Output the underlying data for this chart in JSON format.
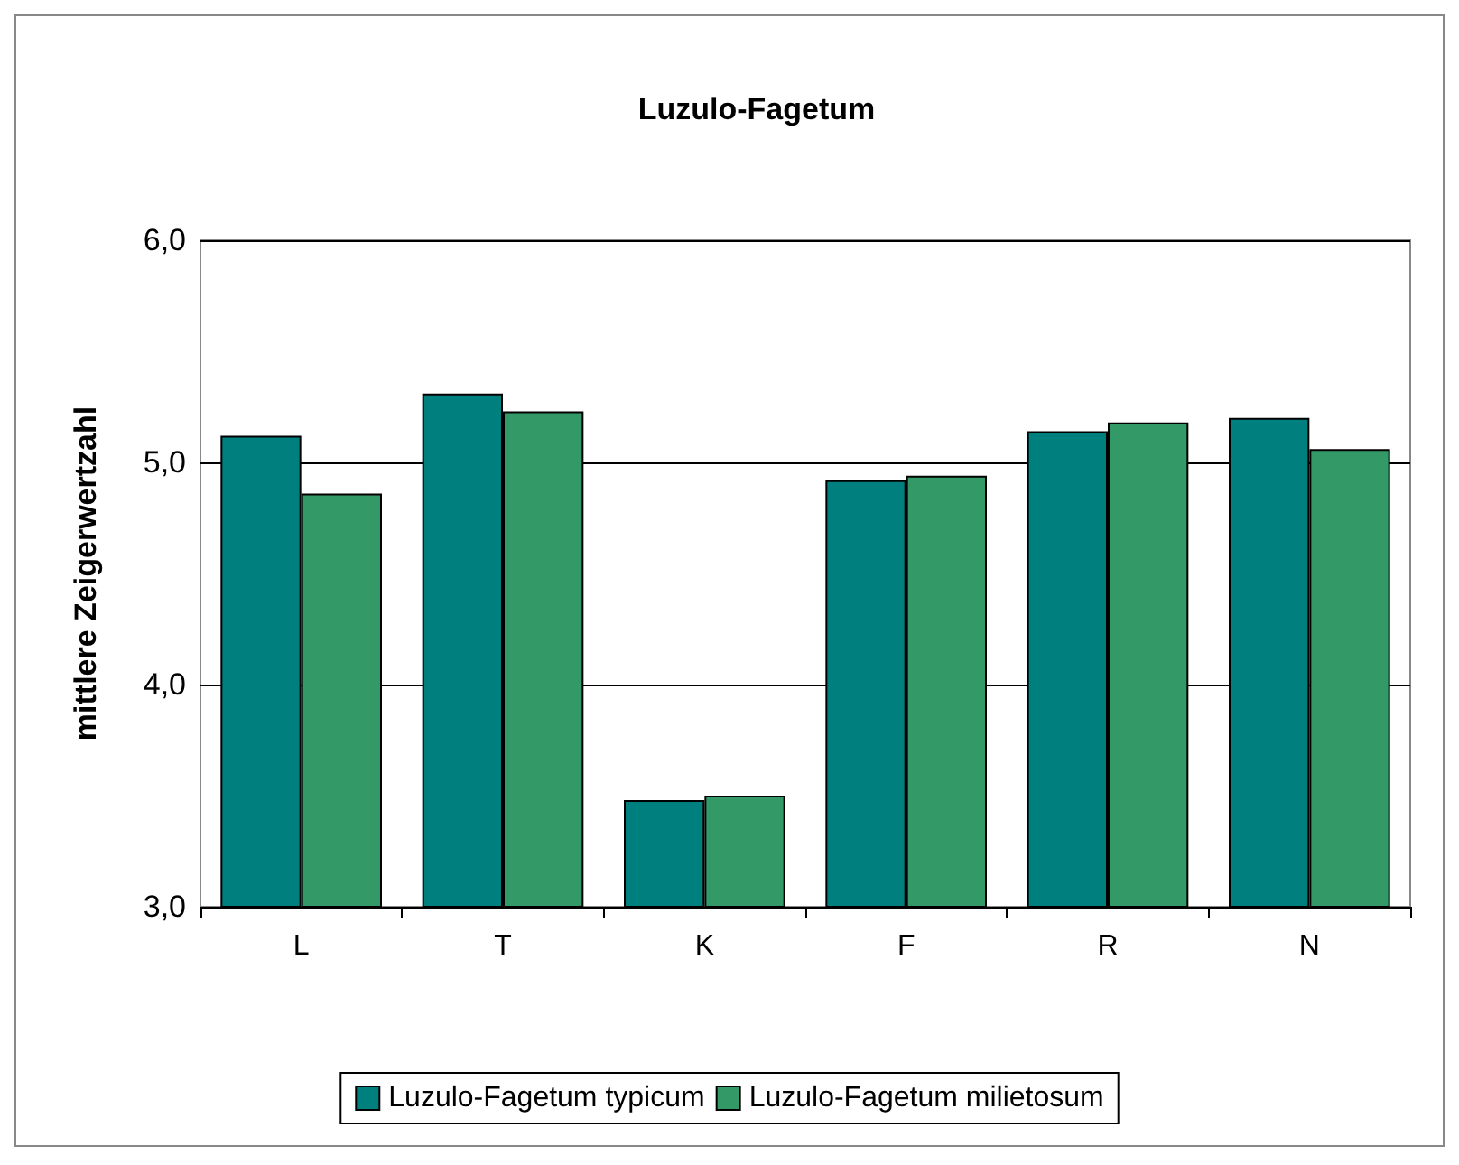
{
  "chart_data": {
    "type": "bar",
    "title": "Luzulo-Fagetum",
    "ylabel": "mittlere Zeigerwertzahl",
    "categories": [
      "L",
      "T",
      "K",
      "F",
      "R",
      "N"
    ],
    "series": [
      {
        "name": "Luzulo-Fagetum typicum",
        "color": "#007f7f",
        "values": [
          5.12,
          5.31,
          3.48,
          4.92,
          5.14,
          5.2
        ]
      },
      {
        "name": "Luzulo-Fagetum milietosum",
        "color": "#339966",
        "values": [
          4.86,
          5.23,
          3.5,
          4.94,
          5.18,
          5.06
        ]
      }
    ],
    "ylim": [
      3,
      6
    ],
    "yticks": [
      {
        "value": 3,
        "label": "3,0"
      },
      {
        "value": 4,
        "label": "4,0"
      },
      {
        "value": 5,
        "label": "5,0"
      },
      {
        "value": 6,
        "label": "6,0"
      }
    ],
    "grid": "y",
    "legend": "bottom"
  }
}
